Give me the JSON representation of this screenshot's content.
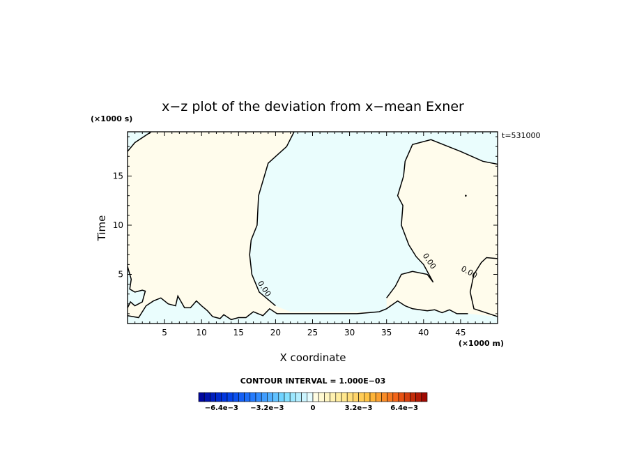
{
  "chart_data": {
    "type": "contour",
    "title": "x−z plot of the deviation from x−mean Exner",
    "xlabel": "X coordinate",
    "ylabel": "Time",
    "x_unit_label": "(×1000 m)",
    "y_unit_label": "(×1000 s)",
    "time_stamp": "t=531000",
    "xlim": [
      0,
      50
    ],
    "ylim": [
      0,
      19.5
    ],
    "x_ticks": [
      5,
      10,
      15,
      20,
      25,
      30,
      35,
      40,
      45
    ],
    "y_ticks": [
      5,
      10,
      15
    ],
    "grid": false,
    "contour_label": "0.00",
    "contour_labels_shown": 3,
    "contour_interval_text": "CONTOUR INTERVAL = 1.000E−03",
    "colorbar": {
      "placement": "bottom",
      "range": [
        -0.008,
        0.008
      ],
      "step": 0.0004,
      "tick_values": [
        -0.0064,
        -0.0032,
        0,
        0.0032,
        0.0064
      ],
      "tick_labels": [
        "−6.4e−3",
        "−3.2e−3",
        "0",
        "3.2e−3",
        "6.4e−3"
      ]
    },
    "regions": [
      {
        "sign": "positive",
        "color": "#fffcec",
        "description_x_range": [
          0,
          21
        ],
        "note": "left region"
      },
      {
        "sign": "negative",
        "color": "#eafdfd",
        "description_x_range": [
          17,
          37
        ]
      },
      {
        "sign": "positive",
        "color": "#fffcec",
        "description_x_range": [
          37,
          50
        ]
      }
    ],
    "zero_contour": [
      {
        "name": "main-boundary-left",
        "points": [
          [
            22.5,
            19.5
          ],
          [
            21.5,
            18
          ],
          [
            19,
            16.3
          ],
          [
            17.7,
            13
          ],
          [
            17.5,
            10
          ],
          [
            16.7,
            8.5
          ],
          [
            16.5,
            7
          ],
          [
            16.8,
            5
          ],
          [
            17.8,
            3.2
          ],
          [
            20,
            1.8
          ]
        ]
      },
      {
        "name": "main-boundary-right",
        "points": [
          [
            50,
            16.2
          ],
          [
            48,
            16.5
          ],
          [
            45,
            17.5
          ],
          [
            41,
            18.7
          ],
          [
            38.5,
            18.2
          ],
          [
            37.5,
            16.5
          ],
          [
            37.3,
            15
          ],
          [
            36.5,
            13
          ],
          [
            37.2,
            12
          ],
          [
            37,
            10
          ],
          [
            38,
            8
          ],
          [
            39,
            6.8
          ],
          [
            40,
            6
          ],
          [
            41.3,
            4.2
          ],
          [
            40.5,
            5
          ],
          [
            38.5,
            5.3
          ],
          [
            37,
            5
          ],
          [
            36.2,
            3.8
          ],
          [
            35,
            2.6
          ]
        ]
      },
      {
        "name": "right-inner-top",
        "points": [
          [
            50,
            6.6
          ],
          [
            48.5,
            6.7
          ],
          [
            47.8,
            6.2
          ],
          [
            46.8,
            5
          ],
          [
            46.3,
            3.2
          ],
          [
            46.8,
            1.5
          ],
          [
            50,
            0.7
          ]
        ]
      },
      {
        "name": "top-left-corner",
        "points": [
          [
            0,
            17.5
          ],
          [
            1,
            18.4
          ],
          [
            3.2,
            19.5
          ]
        ]
      },
      {
        "name": "left-edge-lobe",
        "points": [
          [
            0,
            5.8
          ],
          [
            0.5,
            4.5
          ],
          [
            0.3,
            3.5
          ],
          [
            1,
            3.2
          ],
          [
            2,
            3.4
          ],
          [
            2.4,
            3.3
          ],
          [
            2,
            2.2
          ],
          [
            1,
            1.8
          ],
          [
            0.4,
            2.2
          ],
          [
            0,
            1.6
          ]
        ]
      },
      {
        "name": "bottom-band",
        "points": [
          [
            0,
            0.8
          ],
          [
            1.5,
            0.6
          ],
          [
            2.5,
            1.8
          ],
          [
            3.5,
            2.3
          ],
          [
            4.5,
            2.6
          ],
          [
            5.5,
            2
          ],
          [
            6.5,
            1.8
          ],
          [
            6.8,
            2.8
          ],
          [
            7.7,
            1.6
          ],
          [
            8.5,
            1.6
          ],
          [
            9.3,
            2.3
          ],
          [
            10,
            1.8
          ],
          [
            10.8,
            1.3
          ],
          [
            11.5,
            0.7
          ],
          [
            12.5,
            0.5
          ],
          [
            13,
            0.9
          ],
          [
            14,
            0.4
          ],
          [
            15,
            0.6
          ],
          [
            16,
            0.6
          ],
          [
            17,
            1.2
          ],
          [
            18.3,
            0.8
          ],
          [
            19.2,
            1.5
          ],
          [
            20.2,
            1
          ],
          [
            22,
            1
          ],
          [
            25,
            1
          ],
          [
            28,
            1
          ],
          [
            31,
            1
          ],
          [
            34,
            1.2
          ],
          [
            35,
            1.5
          ],
          [
            36.5,
            2.3
          ],
          [
            37.5,
            1.8
          ],
          [
            38.5,
            1.5
          ],
          [
            39.5,
            1.4
          ],
          [
            40.5,
            1.3
          ],
          [
            41.5,
            1.4
          ],
          [
            42.5,
            1.1
          ],
          [
            43.5,
            1.4
          ],
          [
            44.5,
            1
          ],
          [
            46,
            1
          ]
        ]
      }
    ]
  }
}
